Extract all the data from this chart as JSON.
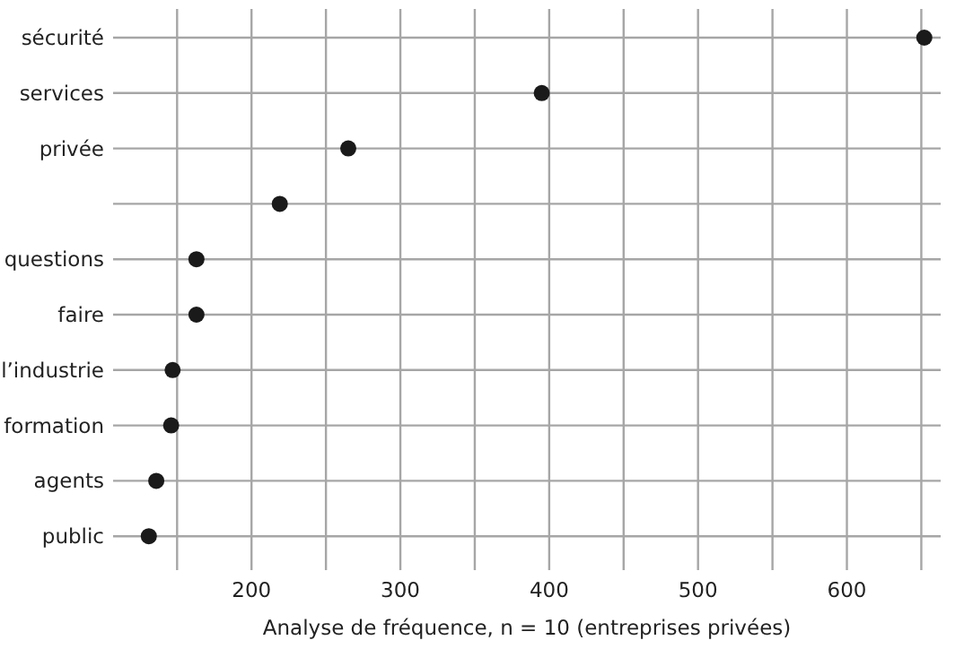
{
  "chart_data": {
    "type": "scatter",
    "orientation": "horizontal",
    "xlabel": "Analyse de fréquence, n = 10 (entreprises privées)",
    "categories": [
      "sécurité",
      "services",
      "privée",
      null,
      "questions",
      "faire",
      "l’industrie",
      "formation",
      "agents",
      "public"
    ],
    "values": [
      652,
      395,
      265,
      219,
      163,
      163,
      147,
      146,
      136,
      131
    ],
    "color": "#1a1a1a",
    "marker": "circle",
    "grid": true,
    "xlim": [
      107,
      663
    ],
    "xticks": [
      {
        "value": 150,
        "label": null
      },
      200,
      {
        "value": 250,
        "label": null
      },
      300,
      {
        "value": 350,
        "label": null
      },
      400,
      {
        "value": 450,
        "label": null
      },
      500,
      {
        "value": 550,
        "label": null
      },
      600,
      {
        "value": 650,
        "label": null
      }
    ]
  }
}
